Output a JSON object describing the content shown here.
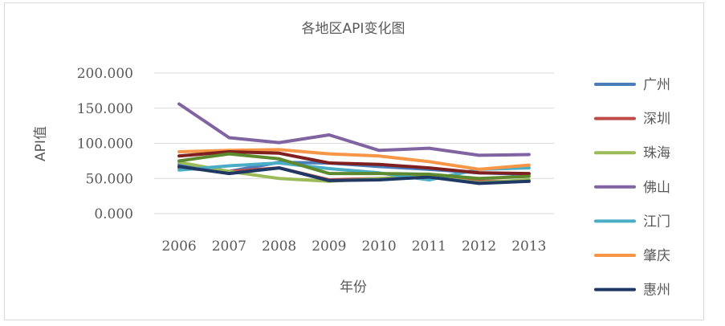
{
  "chart_data": {
    "type": "line",
    "title": "各地区API变化图",
    "xlabel": "年份",
    "ylabel": "API值",
    "x": [
      "2006",
      "2007",
      "2008",
      "2009",
      "2010",
      "2011",
      "2012",
      "2013"
    ],
    "ylim": [
      0,
      200
    ],
    "yticks": [
      "0.000",
      "50.000",
      "100.000",
      "150.000",
      "200.000"
    ],
    "grid": true,
    "legend": "right",
    "series": [
      {
        "name": "广州",
        "color": "#4a7ebb",
        "values": [
          70,
          60,
          73,
          72,
          67,
          63,
          58,
          56
        ]
      },
      {
        "name": "深圳",
        "color": "#be4b48",
        "values": [
          65,
          60,
          65,
          48,
          50,
          53,
          46,
          46
        ]
      },
      {
        "name": "珠海",
        "color": "#9bbb59",
        "values": [
          73,
          60,
          50,
          46,
          50,
          53,
          44,
          48
        ]
      },
      {
        "name": "佛山",
        "color": "#8064a2",
        "values": [
          156,
          108,
          101,
          112,
          90,
          93,
          83,
          84
        ]
      },
      {
        "name": "江门",
        "color": "#4bacc6",
        "values": [
          62,
          68,
          72,
          64,
          58,
          48,
          63,
          65
        ]
      },
      {
        "name": "肇庆",
        "color": "#f79646",
        "values": [
          88,
          90,
          91,
          85,
          82,
          74,
          63,
          69
        ]
      },
      {
        "name": "惠州",
        "color": "#1f3864",
        "values": [
          67,
          57,
          65,
          47,
          48,
          52,
          43,
          46
        ]
      },
      {
        "name": "",
        "color": "#7f1f1f",
        "values": [
          82,
          88,
          86,
          72,
          70,
          65,
          58,
          57
        ]
      },
      {
        "name": "",
        "color": "#5e8a2f",
        "values": [
          75,
          85,
          78,
          57,
          57,
          56,
          50,
          53
        ]
      }
    ]
  }
}
